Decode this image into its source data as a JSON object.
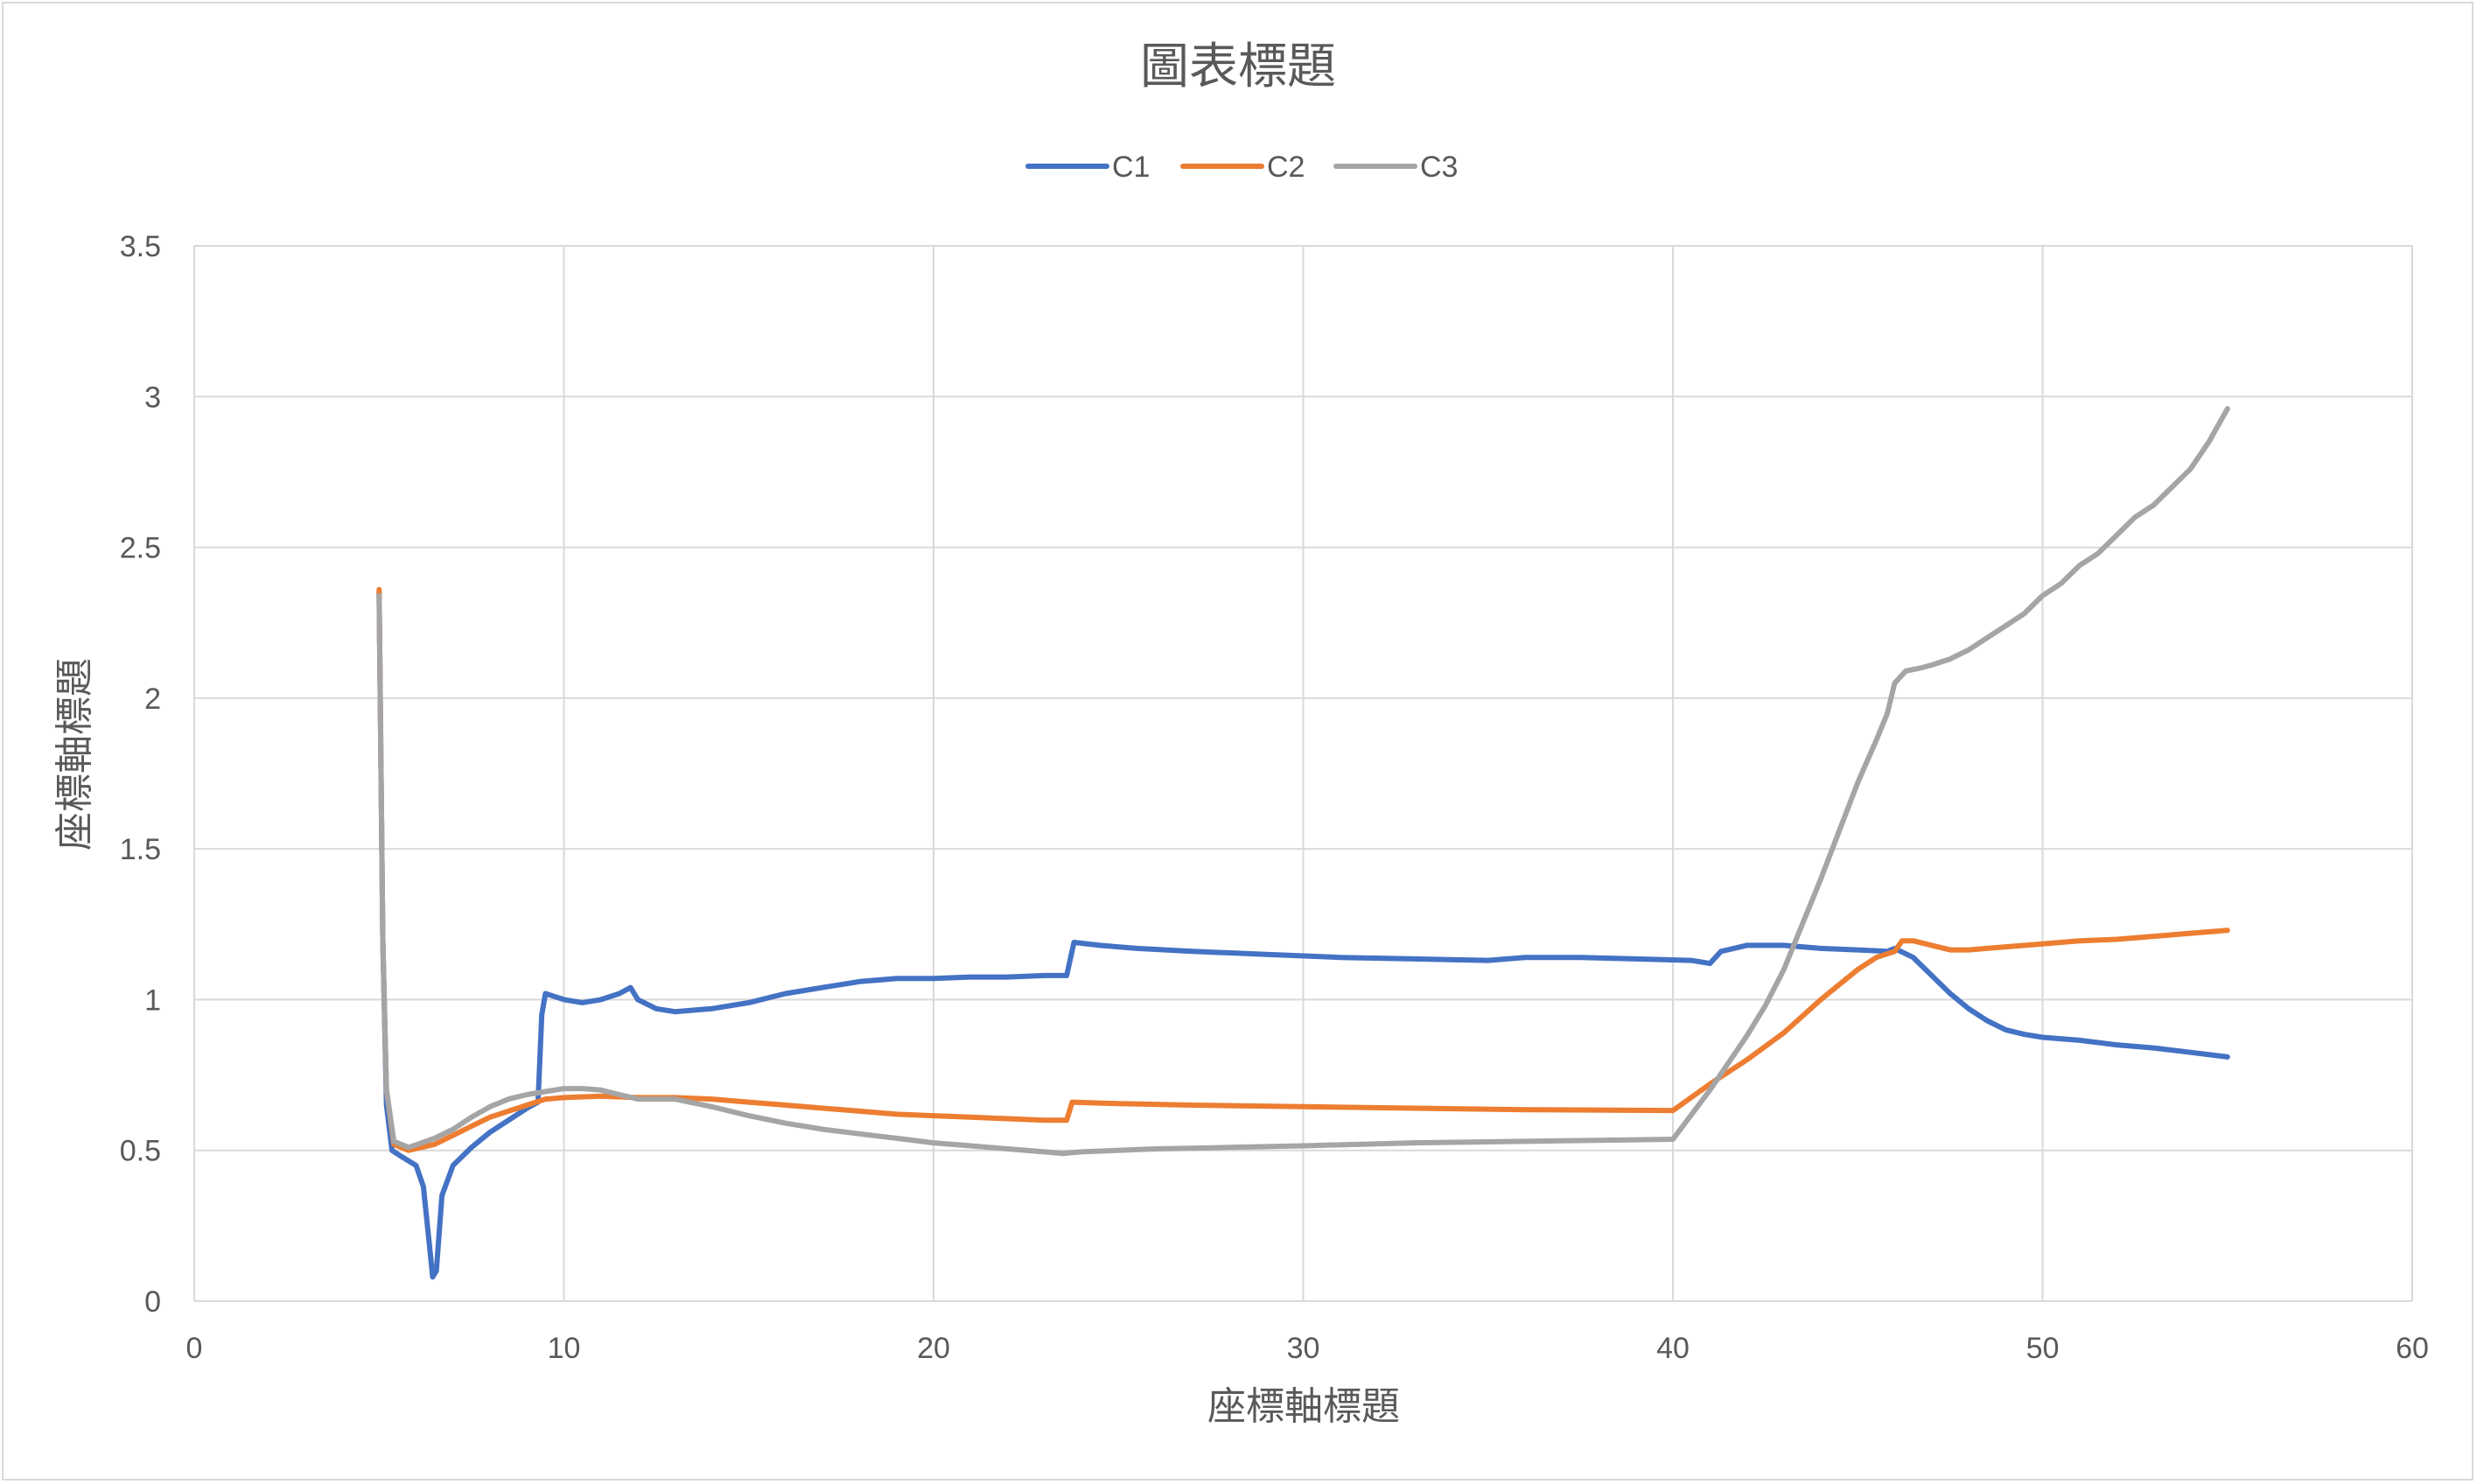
{
  "chart_data": {
    "type": "line",
    "title": "圖表標題",
    "xlabel": "座標軸標題",
    "ylabel": "座標軸標題",
    "xlim": [
      0,
      60
    ],
    "ylim": [
      0,
      3.5
    ],
    "x_ticks": [
      "0",
      "10",
      "20",
      "30",
      "40",
      "50",
      "60"
    ],
    "y_ticks": [
      "0",
      "0.5",
      "1",
      "1.5",
      "2",
      "2.5",
      "3",
      "3.5"
    ],
    "x_tick_values": [
      0,
      10,
      20,
      30,
      40,
      50,
      60
    ],
    "y_tick_values": [
      0,
      0.5,
      1,
      1.5,
      2,
      2.5,
      3,
      3.5
    ],
    "grid": true,
    "legend_position": "top",
    "series": [
      {
        "name": "C1",
        "color": "#4472c4",
        "points": [
          [
            5.0,
            2.35
          ],
          [
            5.1,
            1.2
          ],
          [
            5.2,
            0.65
          ],
          [
            5.35,
            0.5
          ],
          [
            5.6,
            0.48
          ],
          [
            6.0,
            0.45
          ],
          [
            6.2,
            0.38
          ],
          [
            6.35,
            0.2
          ],
          [
            6.45,
            0.08
          ],
          [
            6.55,
            0.1
          ],
          [
            6.7,
            0.35
          ],
          [
            7.0,
            0.45
          ],
          [
            7.5,
            0.51
          ],
          [
            8.0,
            0.56
          ],
          [
            8.5,
            0.6
          ],
          [
            9.0,
            0.64
          ],
          [
            9.3,
            0.66
          ],
          [
            9.4,
            0.95
          ],
          [
            9.5,
            1.02
          ],
          [
            10.0,
            1.0
          ],
          [
            10.5,
            0.99
          ],
          [
            11.0,
            1.0
          ],
          [
            11.5,
            1.02
          ],
          [
            11.8,
            1.04
          ],
          [
            12.0,
            1.0
          ],
          [
            12.5,
            0.97
          ],
          [
            13.0,
            0.96
          ],
          [
            14.0,
            0.97
          ],
          [
            15.0,
            0.99
          ],
          [
            16.0,
            1.02
          ],
          [
            17.0,
            1.04
          ],
          [
            18.0,
            1.06
          ],
          [
            19.0,
            1.07
          ],
          [
            20.0,
            1.07
          ],
          [
            21.0,
            1.075
          ],
          [
            22.0,
            1.075
          ],
          [
            23.0,
            1.08
          ],
          [
            23.6,
            1.08
          ],
          [
            23.8,
            1.19
          ],
          [
            24.5,
            1.18
          ],
          [
            25.5,
            1.17
          ],
          [
            27.0,
            1.16
          ],
          [
            29.0,
            1.15
          ],
          [
            31.0,
            1.14
          ],
          [
            33.0,
            1.135
          ],
          [
            35.0,
            1.13
          ],
          [
            36.0,
            1.14
          ],
          [
            37.5,
            1.14
          ],
          [
            39.0,
            1.135
          ],
          [
            40.5,
            1.13
          ],
          [
            41.0,
            1.12
          ],
          [
            41.3,
            1.16
          ],
          [
            42.0,
            1.18
          ],
          [
            43.0,
            1.18
          ],
          [
            44.0,
            1.17
          ],
          [
            45.0,
            1.165
          ],
          [
            45.8,
            1.16
          ],
          [
            46.0,
            1.17
          ],
          [
            46.5,
            1.14
          ],
          [
            47.0,
            1.08
          ],
          [
            47.5,
            1.02
          ],
          [
            48.0,
            0.97
          ],
          [
            48.5,
            0.93
          ],
          [
            49.0,
            0.9
          ],
          [
            49.5,
            0.885
          ],
          [
            50.0,
            0.875
          ],
          [
            51.0,
            0.865
          ],
          [
            52.0,
            0.85
          ],
          [
            53.0,
            0.84
          ],
          [
            54.0,
            0.825
          ],
          [
            55.0,
            0.81
          ]
        ]
      },
      {
        "name": "C2",
        "color": "#ed7d31",
        "points": [
          [
            5.0,
            2.36
          ],
          [
            5.1,
            1.2
          ],
          [
            5.2,
            0.7
          ],
          [
            5.4,
            0.52
          ],
          [
            5.8,
            0.5
          ],
          [
            6.5,
            0.52
          ],
          [
            7.0,
            0.55
          ],
          [
            7.5,
            0.58
          ],
          [
            8.0,
            0.61
          ],
          [
            8.5,
            0.63
          ],
          [
            9.0,
            0.65
          ],
          [
            9.5,
            0.67
          ],
          [
            10.0,
            0.675
          ],
          [
            11.0,
            0.68
          ],
          [
            12.0,
            0.675
          ],
          [
            13.0,
            0.675
          ],
          [
            14.0,
            0.67
          ],
          [
            15.0,
            0.66
          ],
          [
            16.0,
            0.65
          ],
          [
            17.0,
            0.64
          ],
          [
            18.0,
            0.63
          ],
          [
            19.0,
            0.62
          ],
          [
            20.0,
            0.615
          ],
          [
            21.0,
            0.61
          ],
          [
            22.0,
            0.605
          ],
          [
            23.0,
            0.6
          ],
          [
            23.6,
            0.6
          ],
          [
            23.75,
            0.66
          ],
          [
            25.0,
            0.655
          ],
          [
            27.0,
            0.65
          ],
          [
            30.0,
            0.645
          ],
          [
            33.0,
            0.64
          ],
          [
            36.0,
            0.635
          ],
          [
            40.0,
            0.632
          ],
          [
            41.0,
            0.72
          ],
          [
            42.0,
            0.8
          ],
          [
            43.0,
            0.89
          ],
          [
            44.0,
            1.0
          ],
          [
            45.0,
            1.1
          ],
          [
            45.5,
            1.14
          ],
          [
            46.0,
            1.16
          ],
          [
            46.2,
            1.195
          ],
          [
            46.5,
            1.195
          ],
          [
            47.0,
            1.18
          ],
          [
            47.5,
            1.165
          ],
          [
            48.0,
            1.165
          ],
          [
            49.0,
            1.175
          ],
          [
            50.0,
            1.185
          ],
          [
            51.0,
            1.195
          ],
          [
            52.0,
            1.2
          ],
          [
            53.0,
            1.21
          ],
          [
            54.0,
            1.22
          ],
          [
            55.0,
            1.23
          ]
        ]
      },
      {
        "name": "C3",
        "color": "#a5a5a5",
        "points": [
          [
            5.0,
            2.34
          ],
          [
            5.1,
            1.2
          ],
          [
            5.2,
            0.7
          ],
          [
            5.4,
            0.53
          ],
          [
            5.8,
            0.51
          ],
          [
            6.5,
            0.54
          ],
          [
            7.0,
            0.57
          ],
          [
            7.5,
            0.61
          ],
          [
            8.0,
            0.645
          ],
          [
            8.5,
            0.67
          ],
          [
            9.0,
            0.685
          ],
          [
            9.5,
            0.695
          ],
          [
            10.0,
            0.705
          ],
          [
            10.5,
            0.705
          ],
          [
            11.0,
            0.7
          ],
          [
            11.5,
            0.685
          ],
          [
            12.0,
            0.67
          ],
          [
            13.0,
            0.67
          ],
          [
            14.0,
            0.645
          ],
          [
            15.0,
            0.615
          ],
          [
            16.0,
            0.59
          ],
          [
            17.0,
            0.57
          ],
          [
            18.0,
            0.555
          ],
          [
            19.0,
            0.54
          ],
          [
            20.0,
            0.525
          ],
          [
            21.0,
            0.515
          ],
          [
            22.0,
            0.505
          ],
          [
            23.0,
            0.495
          ],
          [
            23.5,
            0.49
          ],
          [
            24.0,
            0.495
          ],
          [
            26.0,
            0.505
          ],
          [
            28.0,
            0.51
          ],
          [
            30.0,
            0.515
          ],
          [
            33.0,
            0.525
          ],
          [
            36.0,
            0.53
          ],
          [
            40.0,
            0.537
          ],
          [
            41.0,
            0.7
          ],
          [
            42.0,
            0.88
          ],
          [
            42.5,
            0.98
          ],
          [
            43.0,
            1.1
          ],
          [
            43.5,
            1.25
          ],
          [
            44.0,
            1.4
          ],
          [
            44.5,
            1.56
          ],
          [
            45.0,
            1.72
          ],
          [
            45.5,
            1.86
          ],
          [
            45.8,
            1.95
          ],
          [
            46.0,
            2.05
          ],
          [
            46.3,
            2.09
          ],
          [
            46.7,
            2.1
          ],
          [
            47.0,
            2.11
          ],
          [
            47.5,
            2.13
          ],
          [
            48.0,
            2.16
          ],
          [
            48.5,
            2.2
          ],
          [
            49.0,
            2.24
          ],
          [
            49.5,
            2.28
          ],
          [
            50.0,
            2.34
          ],
          [
            50.5,
            2.38
          ],
          [
            51.0,
            2.44
          ],
          [
            51.5,
            2.48
          ],
          [
            52.0,
            2.54
          ],
          [
            52.5,
            2.6
          ],
          [
            53.0,
            2.64
          ],
          [
            53.5,
            2.7
          ],
          [
            54.0,
            2.76
          ],
          [
            54.5,
            2.85
          ],
          [
            55.0,
            2.96
          ]
        ]
      }
    ]
  }
}
